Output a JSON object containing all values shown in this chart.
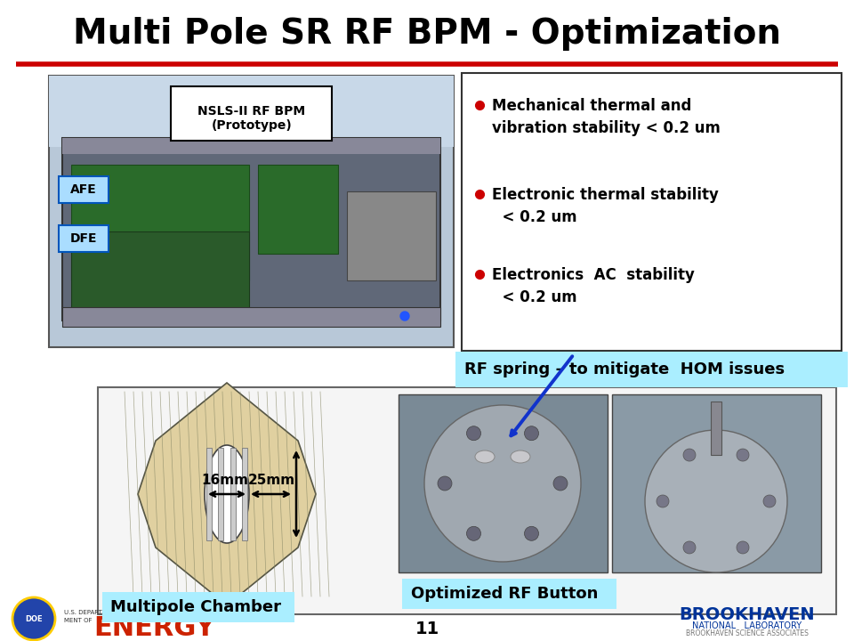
{
  "title": "Multi Pole SR RF BPM - Optimization",
  "title_fontsize": 28,
  "bg_color": "#ffffff",
  "red_line_color": "#cc0000",
  "slide_number": "11",
  "bullet_points": [
    "Mechanical thermal and\nvibration stability < 0.2 um",
    "Electronic thermal stability\n  < 0.2 um",
    "Electronics  AC  stability\n  < 0.2 um"
  ],
  "bullet_color": "#cc0000",
  "bullet_box_edge": "#333333",
  "rf_spring_label": "RF spring – to mitigate  HOM issues",
  "rf_spring_bg": "#aaeeff",
  "multipole_label": "Multipole Chamber",
  "multipole_bg": "#aaeeff",
  "optimized_rf_label": "Optimized RF Button",
  "optimized_rf_bg": "#aaeeff",
  "nsls_label": "NSLS-II RF BPM\n(Prototype)",
  "nsls_bg": "#ffffff",
  "afe_label": "AFE",
  "afe_bg": "#aaddff",
  "dfe_label": "DFE",
  "dfe_bg": "#aaddff",
  "brookhaven_color": "#003399",
  "brookhaven_red": "#cc0000",
  "img_photo_color": "#8899aa",
  "img_photo_top": "#99aacc",
  "pcb_green": "#2a6b2a",
  "pcb_dark": "#334455",
  "rack_gray": "#606878"
}
